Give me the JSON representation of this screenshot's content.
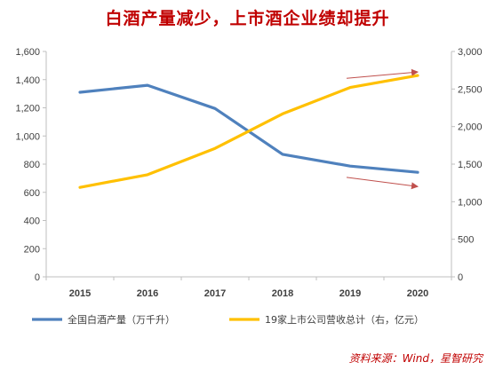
{
  "chart_data": {
    "type": "line",
    "title": "白酒产量减少，上市酒企业绩却提升",
    "x": [
      "2015",
      "2016",
      "2017",
      "2018",
      "2019",
      "2020"
    ],
    "series": [
      {
        "name": "全国白酒产量（万千升）",
        "axis": "left",
        "color": "#4f81bd",
        "values": [
          1310,
          1360,
          1195,
          870,
          786,
          742
        ]
      },
      {
        "name": "19家上市公司营收总计（右，亿元）",
        "axis": "right",
        "color": "#ffc000",
        "values": [
          1190,
          1360,
          1710,
          2170,
          2520,
          2680
        ]
      }
    ],
    "left_axis": {
      "ylim": [
        0,
        1600
      ],
      "ticks": [
        0,
        200,
        400,
        600,
        800,
        1000,
        1200,
        1400,
        1600
      ],
      "tick_labels": [
        "0",
        "200",
        "400",
        "600",
        "800",
        "1,000",
        "1,200",
        "1,400",
        "1,600"
      ]
    },
    "right_axis": {
      "ylim": [
        0,
        3000
      ],
      "ticks": [
        0,
        500,
        1000,
        1500,
        2000,
        2500,
        3000
      ],
      "tick_labels": [
        "0",
        "500",
        "1,000",
        "1,500",
        "2,000",
        "2,500",
        "3,000"
      ]
    },
    "grid": false,
    "legend_position": "bottom",
    "annotations": [
      {
        "type": "arrow",
        "direction": "up",
        "color": "#c0504d"
      },
      {
        "type": "arrow",
        "direction": "down",
        "color": "#c0504d"
      }
    ]
  },
  "source": "资料来源：Wind，星智研究"
}
